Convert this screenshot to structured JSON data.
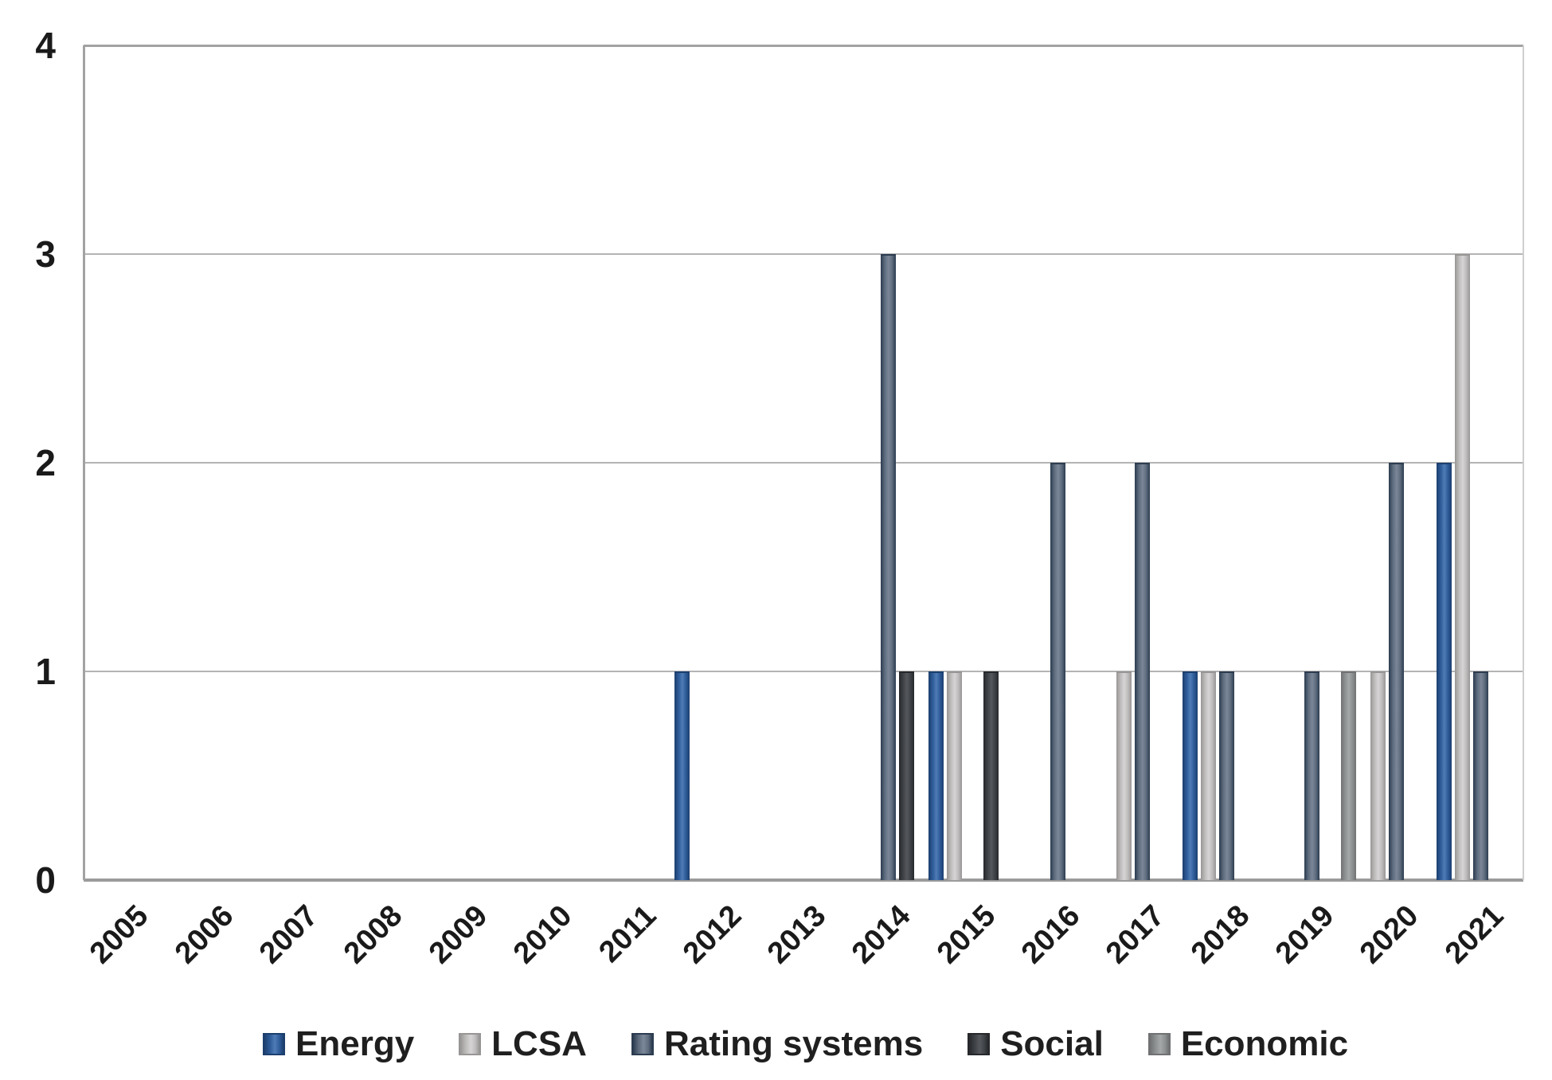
{
  "figure": {
    "y_ticks": [
      "4",
      "3",
      "2",
      "1",
      "0"
    ]
  },
  "chart_data": {
    "type": "bar",
    "title": "",
    "xlabel": "",
    "ylabel": "",
    "ylim": [
      0,
      4
    ],
    "grid": true,
    "legend_position": "bottom",
    "categories": [
      "2005",
      "2006",
      "2007",
      "2008",
      "2009",
      "2010",
      "2011",
      "2012",
      "2013",
      "2014",
      "2015",
      "2016",
      "2017",
      "2018",
      "2019",
      "2020",
      "2021"
    ],
    "series": [
      {
        "name": "Energy",
        "fill": "#2e5c99",
        "border": "#1c3f6e",
        "highlight": "#4f7cb5",
        "values": [
          0,
          0,
          0,
          0,
          0,
          0,
          0,
          1,
          0,
          0,
          1,
          0,
          0,
          1,
          0,
          0,
          2
        ]
      },
      {
        "name": "LCSA",
        "fill": "#bfbcbc",
        "border": "#989595",
        "highlight": "#d6d4d4",
        "values": [
          0,
          0,
          0,
          0,
          0,
          0,
          0,
          0,
          0,
          0,
          1,
          0,
          1,
          1,
          0,
          1,
          3
        ]
      },
      {
        "name": "Rating systems",
        "fill": "#5f6d7f",
        "border": "#2c3c50",
        "highlight": "#7b8798",
        "values": [
          0,
          0,
          0,
          0,
          0,
          0,
          0,
          0,
          0,
          3,
          0,
          2,
          2,
          1,
          1,
          2,
          1
        ]
      },
      {
        "name": "Social",
        "fill": "#3f4246",
        "border": "#26282b",
        "highlight": "#55585c",
        "values": [
          0,
          0,
          0,
          0,
          0,
          0,
          0,
          0,
          0,
          1,
          1,
          0,
          0,
          0,
          0,
          0,
          0
        ]
      },
      {
        "name": "Economic",
        "fill": "#8e9192",
        "border": "#6f7172",
        "highlight": "#a5a8a9",
        "values": [
          0,
          0,
          0,
          0,
          0,
          0,
          0,
          0,
          0,
          0,
          0,
          0,
          0,
          0,
          1,
          0,
          0
        ]
      }
    ],
    "axis_colors": {
      "gridline": "#b4b4b4",
      "frame": "#a2a2a2",
      "baseline": "#9b9b9b",
      "right_border": "#cfcfcf"
    }
  }
}
